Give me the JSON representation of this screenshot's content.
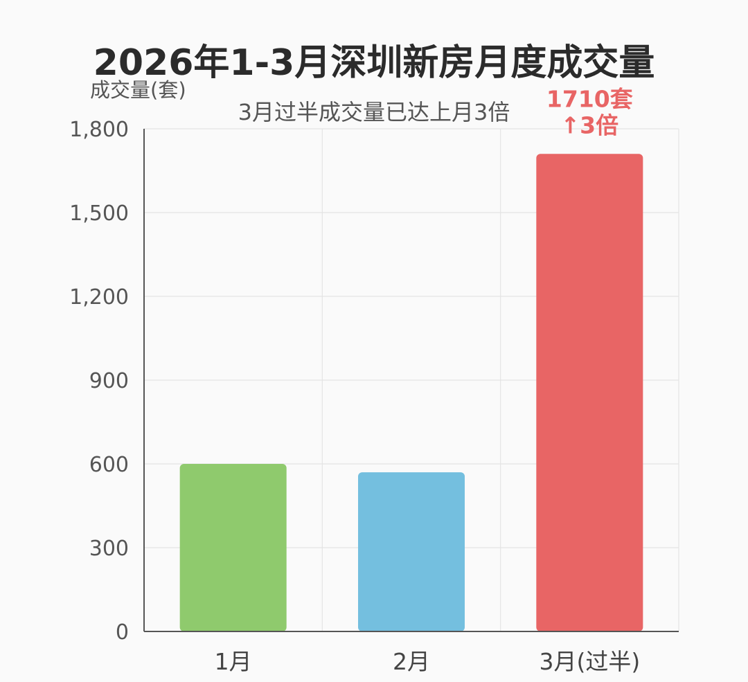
{
  "chart_data": {
    "type": "bar",
    "title": "2026年1-3月深圳新房月度成交量",
    "subtitle": "3月过半成交量已达上月3倍",
    "ylabel": "成交量(套)",
    "xlabel": "",
    "categories": [
      "1月",
      "2月",
      "3月(过半)"
    ],
    "values": [
      600,
      570,
      1710
    ],
    "colors": [
      "#8fca6d",
      "#74bfdf",
      "#e86565"
    ],
    "ylim": [
      0,
      1800
    ],
    "yticks": [
      0,
      300,
      600,
      900,
      1200,
      1500,
      1800
    ],
    "ytick_labels": [
      "0",
      "300",
      "600",
      "900",
      "1,200",
      "1,500",
      "1,800"
    ],
    "grid": true,
    "annotations": [
      {
        "category": "3月(过半)",
        "lines": [
          "1710套",
          "↑3倍"
        ],
        "color": "#e86565"
      }
    ]
  }
}
